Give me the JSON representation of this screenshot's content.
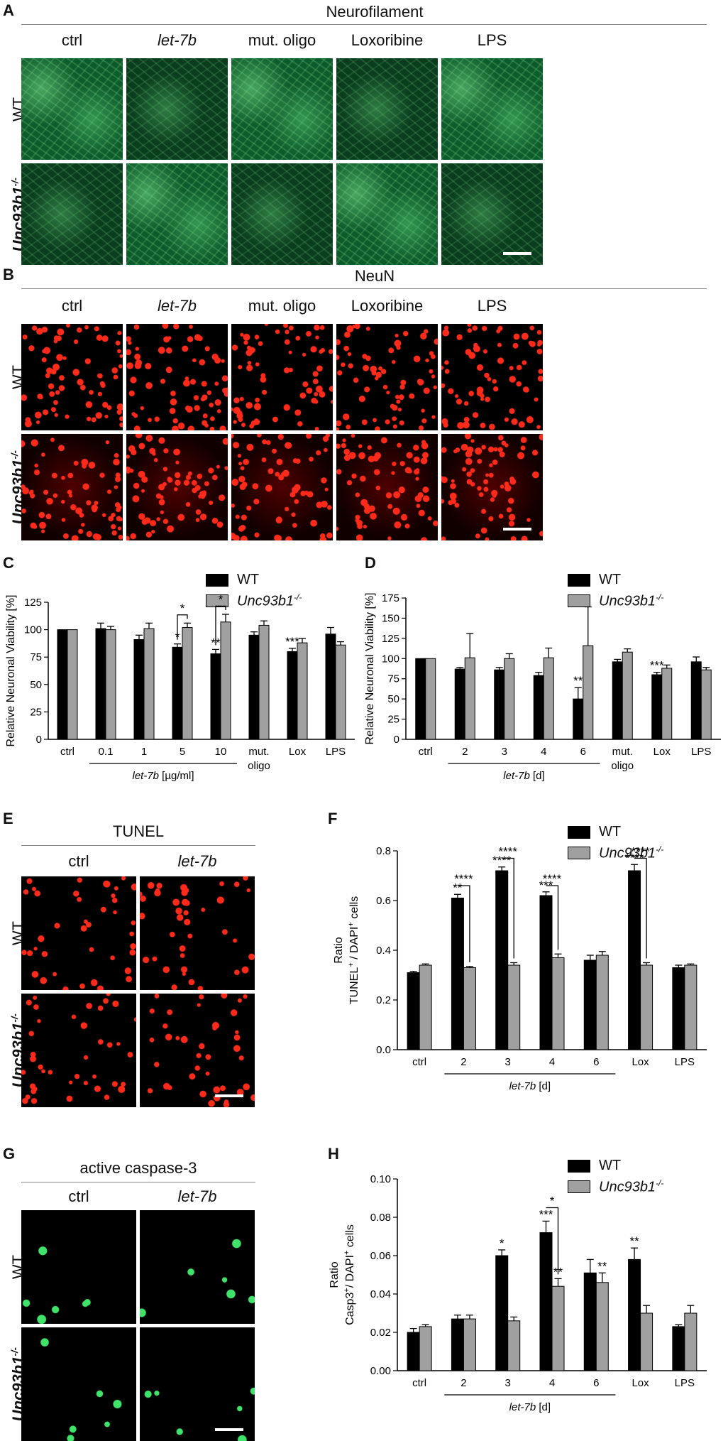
{
  "panels": {
    "A": {
      "letter": "A",
      "title": "Neurofilament",
      "cols": [
        "ctrl",
        "let-7b",
        "mut. oligo",
        "Loxoribine",
        "LPS"
      ],
      "rows": [
        "WT",
        "Unc93b1-/-"
      ]
    },
    "B": {
      "letter": "B",
      "title": "NeuN",
      "cols": [
        "ctrl",
        "let-7b",
        "mut. oligo",
        "Loxoribine",
        "LPS"
      ],
      "rows": [
        "WT",
        "Unc93b1-/-"
      ]
    },
    "E": {
      "letter": "E",
      "title": "TUNEL",
      "cols": [
        "ctrl",
        "let-7b"
      ],
      "rows": [
        "WT",
        "Unc93b1-/-"
      ]
    },
    "G": {
      "letter": "G",
      "title": "active caspase-3",
      "cols": [
        "ctrl",
        "let-7b"
      ],
      "rows": [
        "WT",
        "Unc93b1-/-"
      ]
    },
    "C": {
      "letter": "C"
    },
    "D": {
      "letter": "D"
    },
    "F": {
      "letter": "F"
    },
    "H": {
      "letter": "H"
    }
  },
  "legend": {
    "wt": "WT",
    "ko": "Unc93b1-/-",
    "wt_color": "#000000",
    "ko_color": "#a0a0a0"
  },
  "chart_data": [
    {
      "id": "C",
      "type": "bar",
      "ylabel": "Relative Neuronal Viability [%]",
      "ylim": [
        0,
        125
      ],
      "yticks": [
        0,
        25,
        50,
        75,
        100,
        125
      ],
      "categories": [
        "ctrl",
        "0.1",
        "1",
        "5",
        "10",
        "mut. oligo",
        "Lox",
        "LPS"
      ],
      "group_label": "let-7b [µg/ml]",
      "group_span": [
        1,
        4
      ],
      "series": [
        {
          "name": "WT",
          "values": [
            100,
            101,
            91,
            84,
            78,
            95,
            80,
            96
          ],
          "errors": [
            0,
            5,
            4,
            3,
            4,
            3,
            3,
            6
          ]
        },
        {
          "name": "Unc93b1-/-",
          "values": [
            100,
            100,
            101,
            102,
            107,
            104,
            88,
            86
          ],
          "errors": [
            0,
            3,
            5,
            4,
            7,
            4,
            4,
            3
          ]
        }
      ],
      "stars": [
        {
          "cat": 3,
          "series": 0,
          "text": "*"
        },
        {
          "cat": 4,
          "series": 0,
          "text": "**"
        },
        {
          "cat": 6,
          "series": 0,
          "text": "***"
        }
      ],
      "brackets": [
        {
          "cat": 3,
          "text": "*"
        },
        {
          "cat": 4,
          "text": "*"
        }
      ]
    },
    {
      "id": "D",
      "type": "bar",
      "ylabel": "Relative Neuronal Viability [%]",
      "ylim": [
        0,
        175
      ],
      "yticks": [
        0,
        25,
        50,
        75,
        100,
        125,
        150,
        175
      ],
      "categories": [
        "ctrl",
        "2",
        "3",
        "4",
        "6",
        "mut. oligo",
        "Lox",
        "LPS"
      ],
      "group_label": "let-7b [d]",
      "group_span": [
        1,
        4
      ],
      "series": [
        {
          "name": "WT",
          "values": [
            100,
            87,
            86,
            79,
            50,
            96,
            80,
            96
          ],
          "errors": [
            0,
            2,
            3,
            4,
            14,
            3,
            3,
            6
          ]
        },
        {
          "name": "Unc93b1-/-",
          "values": [
            100,
            101,
            100,
            101,
            116,
            108,
            88,
            86
          ],
          "errors": [
            0,
            30,
            6,
            12,
            48,
            4,
            4,
            3
          ]
        }
      ],
      "stars": [
        {
          "cat": 4,
          "series": 0,
          "text": "**"
        },
        {
          "cat": 6,
          "series": 0,
          "text": "***"
        }
      ],
      "brackets": []
    },
    {
      "id": "F",
      "type": "bar",
      "ylabel": "Ratio\nTUNEL+ / DAPI+ cells",
      "ylim": [
        0,
        0.8
      ],
      "yticks": [
        0.0,
        0.2,
        0.4,
        0.6,
        0.8
      ],
      "categories": [
        "ctrl",
        "2",
        "3",
        "4",
        "6",
        "Lox",
        "LPS"
      ],
      "group_label": "let-7b [d]",
      "group_span": [
        1,
        4
      ],
      "series": [
        {
          "name": "WT",
          "values": [
            0.31,
            0.61,
            0.72,
            0.62,
            0.36,
            0.72,
            0.33
          ],
          "errors": [
            0.005,
            0.015,
            0.015,
            0.015,
            0.02,
            0.025,
            0.01
          ]
        },
        {
          "name": "Unc93b1-/-",
          "values": [
            0.34,
            0.33,
            0.34,
            0.37,
            0.38,
            0.34,
            0.34
          ],
          "errors": [
            0.005,
            0.005,
            0.01,
            0.015,
            0.015,
            0.01,
            0.005
          ]
        }
      ],
      "stars": [
        {
          "cat": 1,
          "series": 0,
          "text": "**"
        },
        {
          "cat": 2,
          "series": 0,
          "text": "****"
        },
        {
          "cat": 3,
          "series": 0,
          "text": "***"
        },
        {
          "cat": 5,
          "series": 0,
          "text": "****"
        }
      ],
      "brackets": [
        {
          "cat": 1,
          "text": "****",
          "h": 0.66
        },
        {
          "cat": 2,
          "text": "****",
          "h": 0.77
        },
        {
          "cat": 3,
          "text": "****",
          "h": 0.66
        },
        {
          "cat": 5,
          "text": "****",
          "h": 0.77
        }
      ]
    },
    {
      "id": "H",
      "type": "bar",
      "ylabel": "Ratio\nCasp3+/ DAPI+ cells",
      "ylim": [
        0,
        0.1
      ],
      "yticks": [
        0.0,
        0.02,
        0.04,
        0.06,
        0.08,
        0.1
      ],
      "categories": [
        "ctrl",
        "2",
        "3",
        "4",
        "6",
        "Lox",
        "LPS"
      ],
      "group_label": "let-7b [d]",
      "group_span": [
        1,
        4
      ],
      "series": [
        {
          "name": "WT",
          "values": [
            0.02,
            0.027,
            0.06,
            0.072,
            0.051,
            0.058,
            0.023
          ],
          "errors": [
            0.002,
            0.002,
            0.003,
            0.006,
            0.007,
            0.006,
            0.001
          ]
        },
        {
          "name": "Unc93b1-/-",
          "values": [
            0.023,
            0.027,
            0.026,
            0.044,
            0.046,
            0.03,
            0.03
          ],
          "errors": [
            0.001,
            0.002,
            0.002,
            0.004,
            0.005,
            0.004,
            0.004
          ]
        }
      ],
      "stars": [
        {
          "cat": 2,
          "series": 0,
          "text": "*"
        },
        {
          "cat": 3,
          "series": 0,
          "text": "***"
        },
        {
          "cat": 3,
          "series": 1,
          "text": "**"
        },
        {
          "cat": 4,
          "series": 1,
          "text": "**"
        },
        {
          "cat": 5,
          "series": 0,
          "text": "**"
        }
      ],
      "brackets": [
        {
          "cat": 3,
          "text": "*",
          "h": 0.085
        }
      ]
    }
  ]
}
